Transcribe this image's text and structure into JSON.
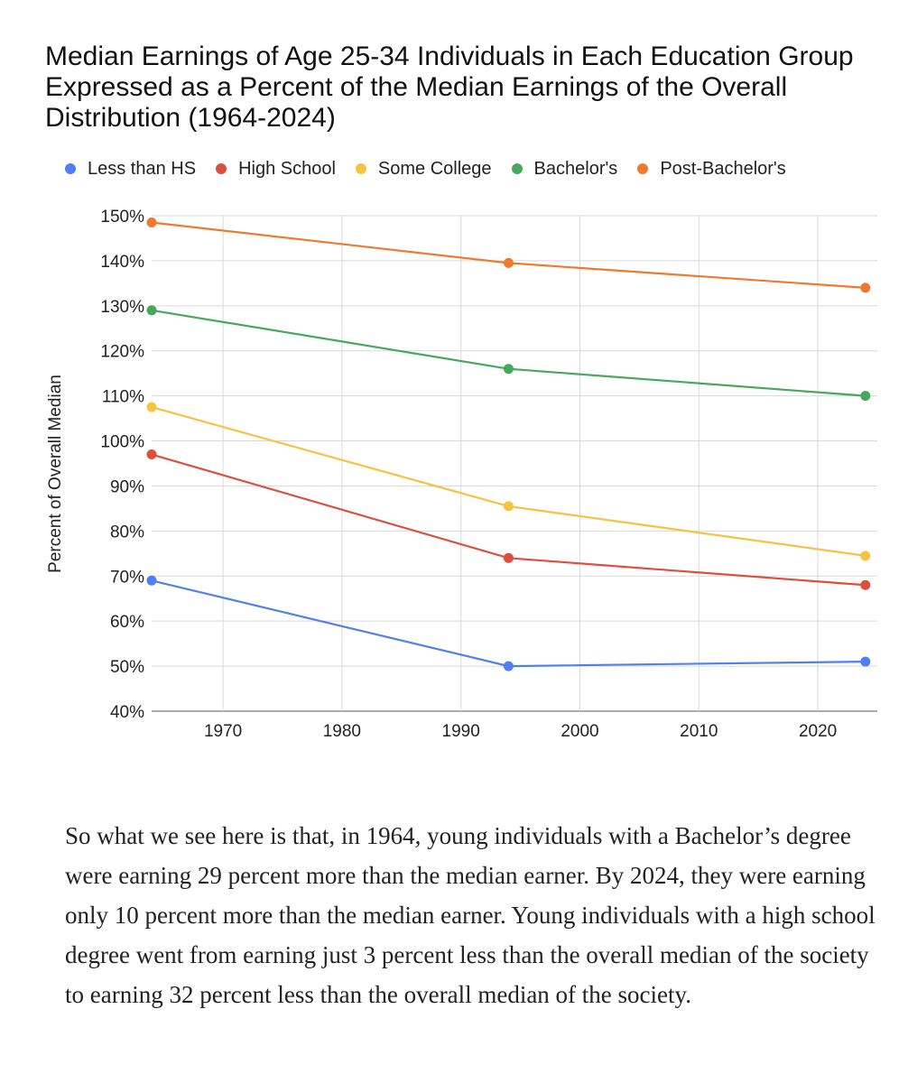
{
  "chart_data": {
    "type": "line",
    "title": "Median Earnings of Age 25-34 Individuals in Each Education Group Expressed as a Percent of the Median Earnings of the Overall Distribution (1964-2024)",
    "ylabel": "Percent of Overall Median",
    "xlabel": "",
    "x": [
      1964,
      1994,
      2024
    ],
    "xlim": [
      1964,
      2025
    ],
    "ylim": [
      40,
      150
    ],
    "x_ticks": [
      1970,
      1980,
      1990,
      2000,
      2010,
      2020
    ],
    "x_tick_labels": [
      "1970",
      "1980",
      "1990",
      "2000",
      "2010",
      "2020"
    ],
    "y_ticks": [
      40,
      50,
      60,
      70,
      80,
      90,
      100,
      110,
      120,
      130,
      140,
      150
    ],
    "y_tick_labels": [
      "40%",
      "50%",
      "60%",
      "70%",
      "80%",
      "90%",
      "100%",
      "110%",
      "120%",
      "130%",
      "140%",
      "150%"
    ],
    "grid": true,
    "legend_position": "top",
    "series": [
      {
        "name": "Less than HS",
        "color": "#4f7ff0",
        "values": [
          69,
          50,
          51
        ]
      },
      {
        "name": "High School",
        "color": "#dc4f3e",
        "values": [
          97,
          74,
          68
        ]
      },
      {
        "name": "Some College",
        "color": "#f5c342",
        "values": [
          107.5,
          85.5,
          74.5
        ]
      },
      {
        "name": "Bachelor's",
        "color": "#47a85c",
        "values": [
          129,
          116,
          110
        ]
      },
      {
        "name": "Post-Bachelor's",
        "color": "#ee7a30",
        "values": [
          148.5,
          139.5,
          134
        ]
      }
    ]
  },
  "body_text": "So what we see here is that, in 1964, young individuals with a Bachelor’s degree were earning 29 percent more than the median earner. By 2024, they were earning only 10 percent more than the median earner. Young individuals with a high school degree went from earning just 3 percent less than the overall median of the society to earning 32 percent less than the overall median of the society."
}
